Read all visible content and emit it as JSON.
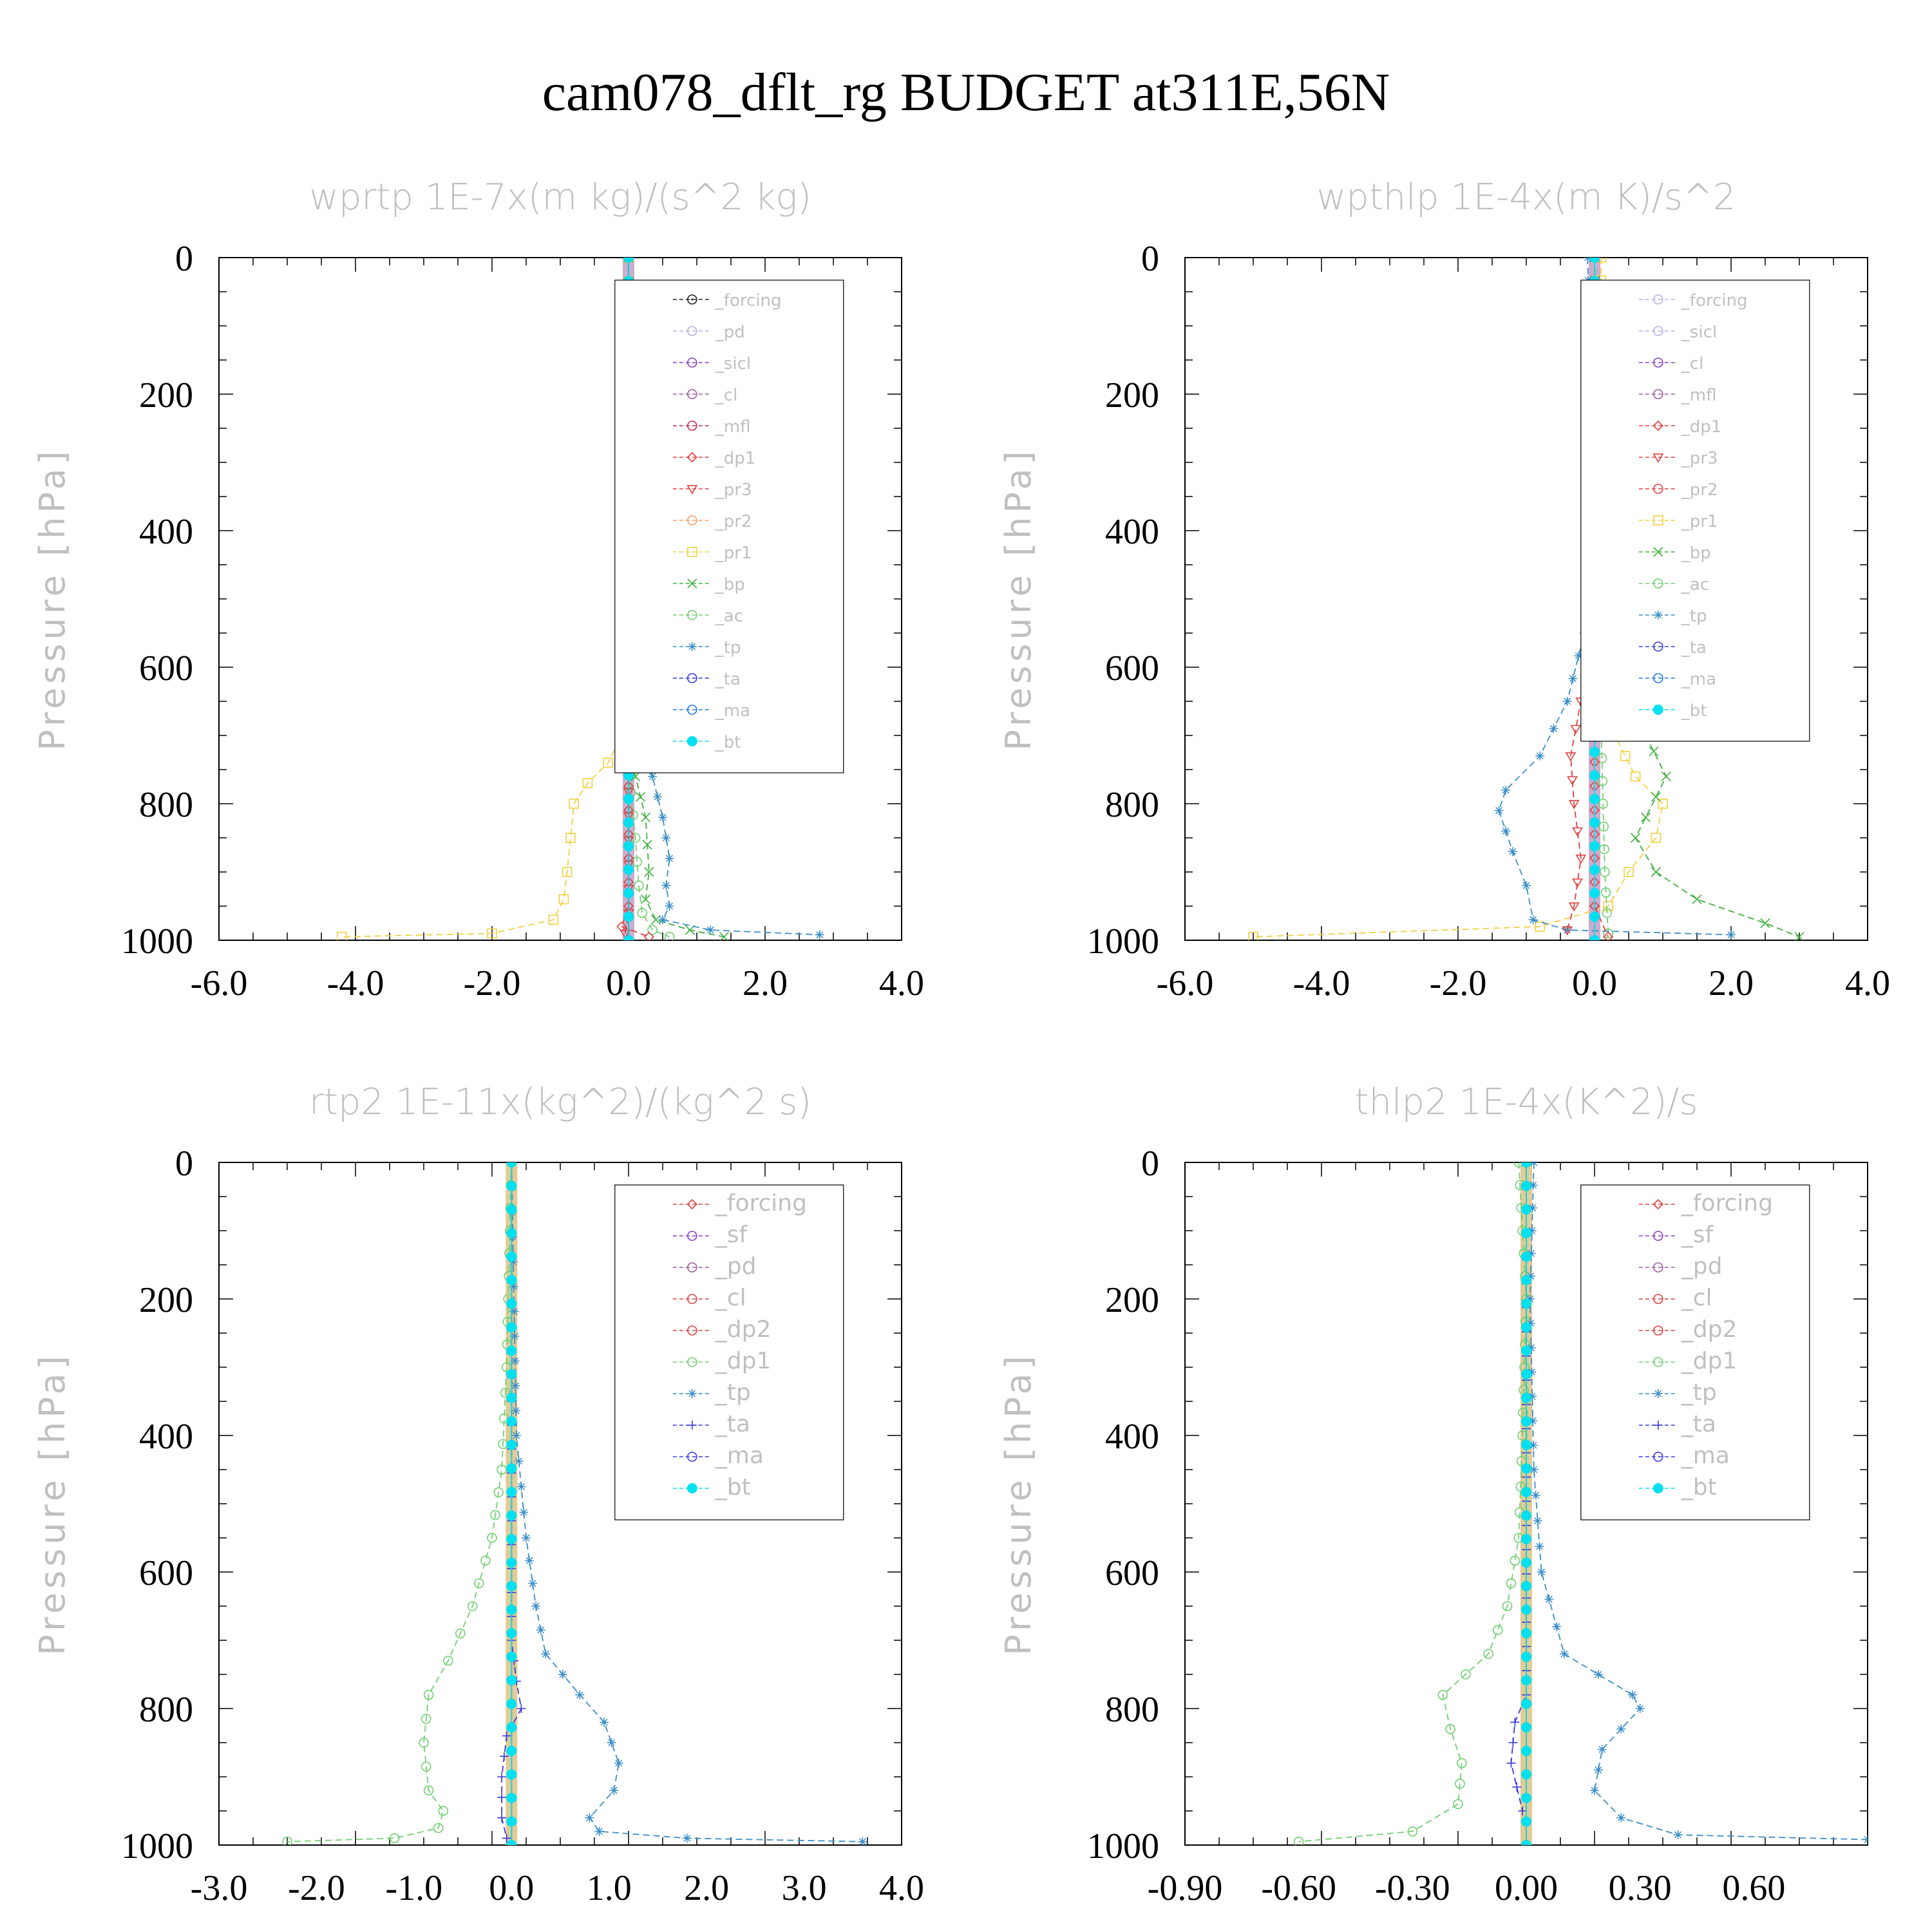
{
  "figure": {
    "title": "cam078_dflt_rg  BUDGET at311E,56N"
  },
  "colors": {
    "forcing_black": "#222222",
    "lavender": "#b9b0e8",
    "purple": "#8a3fc6",
    "violet": "#a05aa0",
    "crimson": "#c03050",
    "red": "#e04040",
    "orange": "#f6a060",
    "yellow": "#f2d040",
    "green": "#40b040",
    "light_green": "#70d070",
    "teal_blue": "#3a8ec8",
    "blue": "#3a3ae0",
    "dodger": "#1e78e0",
    "cyan": "#00e0f0",
    "muted_text": "#c0c0c0"
  },
  "chart_data": [
    {
      "type": "line",
      "title": "wprtp  1E-7x(m kg)/(s^2 kg)",
      "ylabel": "Pressure [hPa]",
      "xlim": [
        -6.0,
        4.0
      ],
      "ylim": [
        1000,
        0
      ],
      "xticks": [
        "-6.0",
        "-4.0",
        "-2.0",
        "0.0",
        "2.0",
        "4.0"
      ],
      "yticks": [
        "0",
        "200",
        "400",
        "600",
        "800",
        "1000"
      ],
      "legend_position": "top-right",
      "legend": [
        "_forcing",
        "_pd",
        "_sicl",
        "_cl",
        "_mfl",
        "_dp1",
        "_pr3",
        "_pr2",
        "_pr1",
        "_bp",
        "_ac",
        "_tp",
        "_ta",
        "_ma",
        "_bt"
      ],
      "series": [
        {
          "name": "_pr1",
          "color": "#f2d040",
          "marker": "square",
          "points": [
            [
              0,
              0
            ],
            [
              0,
              600
            ],
            [
              -0.1,
              700
            ],
            [
              -0.3,
              740
            ],
            [
              -0.6,
              770
            ],
            [
              -0.8,
              800
            ],
            [
              -0.85,
              850
            ],
            [
              -0.9,
              900
            ],
            [
              -0.95,
              940
            ],
            [
              -1.1,
              970
            ],
            [
              -2.0,
              990
            ],
            [
              -4.2,
              995
            ]
          ]
        },
        {
          "name": "_bp",
          "color": "#40b040",
          "marker": "x",
          "points": [
            [
              0,
              0
            ],
            [
              0,
              700
            ],
            [
              0.1,
              760
            ],
            [
              0.25,
              820
            ],
            [
              0.3,
              900
            ],
            [
              0.25,
              940
            ],
            [
              0.4,
              970
            ],
            [
              0.9,
              985
            ],
            [
              1.4,
              995
            ]
          ]
        },
        {
          "name": "_ac",
          "color": "#70d070",
          "marker": "circle",
          "points": [
            [
              0,
              0
            ],
            [
              0,
              750
            ],
            [
              0.1,
              850
            ],
            [
              0.15,
              920
            ],
            [
              0.2,
              960
            ],
            [
              0.35,
              985
            ],
            [
              0.6,
              995
            ]
          ]
        },
        {
          "name": "_tp",
          "color": "#3a8ec8",
          "marker": "asterisk",
          "points": [
            [
              0,
              0
            ],
            [
              0,
              650
            ],
            [
              0.15,
              700
            ],
            [
              0.35,
              760
            ],
            [
              0.5,
              820
            ],
            [
              0.6,
              880
            ],
            [
              0.55,
              920
            ],
            [
              0.6,
              950
            ],
            [
              0.5,
              970
            ],
            [
              1.2,
              985
            ],
            [
              2.8,
              992
            ]
          ]
        },
        {
          "name": "_dp1",
          "color": "#e04040",
          "marker": "diamond",
          "points": [
            [
              0,
              0
            ],
            [
              0,
              950
            ],
            [
              -0.1,
              980
            ],
            [
              0.3,
              995
            ]
          ]
        },
        {
          "name": "_pr3",
          "color": "#e04040",
          "marker": "tri-down",
          "points": [
            [
              0,
              0
            ],
            [
              0,
              960
            ],
            [
              -0.05,
              990
            ]
          ]
        },
        {
          "name": "_forcing",
          "color": "#222222",
          "marker": "circle-dot",
          "points": [
            [
              0,
              0
            ],
            [
              0,
              1000
            ]
          ]
        },
        {
          "name": "_bt",
          "color": "#00e0f0",
          "marker": "filled-circle",
          "points": [
            [
              0,
              0
            ],
            [
              0,
              1000
            ]
          ]
        }
      ]
    },
    {
      "type": "line",
      "title": "wpthlp  1E-4x(m K)/s^2",
      "ylabel": "Pressure [hPa]",
      "xlim": [
        -6.0,
        4.0
      ],
      "ylim": [
        1000,
        0
      ],
      "xticks": [
        "-6.0",
        "-4.0",
        "-2.0",
        "0.0",
        "2.0",
        "4.0"
      ],
      "yticks": [
        "0",
        "200",
        "400",
        "600",
        "800",
        "1000"
      ],
      "legend_position": "top-right",
      "legend": [
        "_forcing",
        "_sicl",
        "_cl",
        "_mfl",
        "_dp1",
        "_pr3",
        "_pr2",
        "_pr1",
        "_bp",
        "_ac",
        "_tp",
        "_ta",
        "_ma",
        "_bt"
      ],
      "series": [
        {
          "name": "_pr1",
          "color": "#f2d040",
          "marker": "square",
          "points": [
            [
              0.1,
              0
            ],
            [
              0.05,
              300
            ],
            [
              0.1,
              500
            ],
            [
              0.15,
              620
            ],
            [
              0.3,
              700
            ],
            [
              0.6,
              760
            ],
            [
              1.0,
              800
            ],
            [
              0.9,
              850
            ],
            [
              0.5,
              900
            ],
            [
              0.2,
              950
            ],
            [
              -0.8,
              980
            ],
            [
              -5.0,
              995
            ]
          ]
        },
        {
          "name": "_bp",
          "color": "#40b040",
          "marker": "x",
          "points": [
            [
              0,
              0
            ],
            [
              0.1,
              300
            ],
            [
              0.25,
              550
            ],
            [
              0.5,
              650
            ],
            [
              1.05,
              760
            ],
            [
              0.6,
              850
            ],
            [
              0.9,
              900
            ],
            [
              1.5,
              940
            ],
            [
              2.5,
              975
            ],
            [
              3.0,
              995
            ]
          ]
        },
        {
          "name": "_ac",
          "color": "#70d070",
          "marker": "circle",
          "points": [
            [
              0,
              0
            ],
            [
              0.05,
              400
            ],
            [
              0.1,
              700
            ],
            [
              0.15,
              900
            ],
            [
              0.2,
              990
            ]
          ]
        },
        {
          "name": "_tp",
          "color": "#3a8ec8",
          "marker": "asterisk",
          "points": [
            [
              -0.1,
              0
            ],
            [
              -0.05,
              300
            ],
            [
              -0.15,
              550
            ],
            [
              -0.4,
              650
            ],
            [
              -0.8,
              730
            ],
            [
              -1.3,
              780
            ],
            [
              -1.4,
              810
            ],
            [
              -1.2,
              870
            ],
            [
              -1.0,
              920
            ],
            [
              -0.9,
              970
            ],
            [
              -0.4,
              985
            ],
            [
              2.0,
              992
            ]
          ]
        },
        {
          "name": "_pr3",
          "color": "#e04040",
          "marker": "tri-down",
          "points": [
            [
              0,
              0
            ],
            [
              0,
              550
            ],
            [
              -0.2,
              650
            ],
            [
              -0.35,
              730
            ],
            [
              -0.3,
              800
            ],
            [
              -0.2,
              880
            ],
            [
              -0.3,
              950
            ],
            [
              -0.4,
              985
            ]
          ]
        },
        {
          "name": "_dp1",
          "color": "#e04040",
          "marker": "diamond",
          "points": [
            [
              0,
              0
            ],
            [
              0,
              950
            ],
            [
              0.2,
              995
            ]
          ]
        },
        {
          "name": "_forcing",
          "color": "#b9b0e8",
          "marker": "circle",
          "points": [
            [
              0,
              0
            ],
            [
              0,
              1000
            ]
          ]
        },
        {
          "name": "_bt",
          "color": "#00e0f0",
          "marker": "filled-circle",
          "points": [
            [
              0,
              0
            ],
            [
              0,
              1000
            ]
          ]
        }
      ]
    },
    {
      "type": "line",
      "title": "rtp2  1E-11x(kg^2)/(kg^2 s)",
      "ylabel": "Pressure [hPa]",
      "xlim": [
        -3.0,
        4.0
      ],
      "ylim": [
        1000,
        0
      ],
      "xticks": [
        "-3.0",
        "-2.0",
        "-1.0",
        "0.0",
        "1.0",
        "2.0",
        "3.0",
        "4.0"
      ],
      "yticks": [
        "0",
        "200",
        "400",
        "600",
        "800",
        "1000"
      ],
      "legend_position": "top-right",
      "legend": [
        "_forcing",
        "_sf",
        "_pd",
        "_cl",
        "_dp2",
        "_dp1",
        "_tp",
        "_ta",
        "_ma",
        "_bt"
      ],
      "series": [
        {
          "name": "_dp1",
          "color": "#70d070",
          "marker": "circle",
          "points": [
            [
              0,
              0
            ],
            [
              -0.05,
              300
            ],
            [
              -0.1,
              450
            ],
            [
              -0.2,
              550
            ],
            [
              -0.4,
              650
            ],
            [
              -0.65,
              730
            ],
            [
              -0.85,
              780
            ],
            [
              -0.9,
              850
            ],
            [
              -0.85,
              920
            ],
            [
              -0.7,
              950
            ],
            [
              -0.75,
              975
            ],
            [
              -1.2,
              990
            ],
            [
              -2.3,
              995
            ]
          ]
        },
        {
          "name": "_tp",
          "color": "#3a8ec8",
          "marker": "asterisk",
          "points": [
            [
              0,
              0
            ],
            [
              0.05,
              400
            ],
            [
              0.15,
              550
            ],
            [
              0.25,
              650
            ],
            [
              0.35,
              720
            ],
            [
              0.7,
              780
            ],
            [
              0.95,
              820
            ],
            [
              1.1,
              880
            ],
            [
              1.05,
              920
            ],
            [
              0.8,
              960
            ],
            [
              0.9,
              980
            ],
            [
              1.8,
              990
            ],
            [
              3.6,
              995
            ]
          ]
        },
        {
          "name": "_ta",
          "color": "#3a3ae0",
          "marker": "plus",
          "points": [
            [
              0,
              0
            ],
            [
              0,
              700
            ],
            [
              0.05,
              760
            ],
            [
              0.1,
              800
            ],
            [
              -0.05,
              840
            ],
            [
              -0.1,
              900
            ],
            [
              -0.1,
              960
            ],
            [
              -0.05,
              990
            ]
          ]
        },
        {
          "name": "_forcing",
          "color": "#e04040",
          "marker": "diamond",
          "points": [
            [
              0,
              0
            ],
            [
              0,
              1000
            ]
          ]
        },
        {
          "name": "_bt",
          "color": "#00e0f0",
          "marker": "filled-circle",
          "points": [
            [
              0,
              0
            ],
            [
              0,
              1000
            ]
          ]
        }
      ]
    },
    {
      "type": "line",
      "title": "thlp2  1E-4x(K^2)/s",
      "ylabel": "Pressure [hPa]",
      "xlim": [
        -0.9,
        0.9
      ],
      "ylim": [
        1000,
        0
      ],
      "xticks": [
        "-0.90",
        "-0.60",
        "-0.30",
        "0.00",
        "0.30",
        "0.60"
      ],
      "yticks": [
        "0",
        "200",
        "400",
        "600",
        "800",
        "1000"
      ],
      "legend_position": "top-right",
      "legend": [
        "_forcing",
        "_sf",
        "_pd",
        "_cl",
        "_dp2",
        "_dp1",
        "_tp",
        "_ta",
        "_ma",
        "_bt"
      ],
      "series": [
        {
          "name": "_dp1",
          "color": "#70d070",
          "marker": "circle",
          "points": [
            [
              -0.02,
              0
            ],
            [
              0,
              200
            ],
            [
              -0.01,
              400
            ],
            [
              -0.02,
              550
            ],
            [
              -0.05,
              650
            ],
            [
              -0.1,
              720
            ],
            [
              -0.22,
              780
            ],
            [
              -0.2,
              830
            ],
            [
              -0.17,
              880
            ],
            [
              -0.18,
              940
            ],
            [
              -0.3,
              980
            ],
            [
              -0.6,
              995
            ]
          ]
        },
        {
          "name": "_tp",
          "color": "#3a8ec8",
          "marker": "asterisk",
          "points": [
            [
              0.02,
              0
            ],
            [
              0.01,
              200
            ],
            [
              0.02,
              450
            ],
            [
              0.04,
              600
            ],
            [
              0.1,
              720
            ],
            [
              0.28,
              780
            ],
            [
              0.3,
              800
            ],
            [
              0.2,
              860
            ],
            [
              0.18,
              920
            ],
            [
              0.25,
              960
            ],
            [
              0.4,
              985
            ],
            [
              0.9,
              992
            ]
          ]
        },
        {
          "name": "_ta",
          "color": "#3a3ae0",
          "marker": "plus",
          "points": [
            [
              0,
              0
            ],
            [
              0,
              780
            ],
            [
              -0.03,
              820
            ],
            [
              -0.04,
              880
            ],
            [
              -0.01,
              950
            ]
          ]
        },
        {
          "name": "_forcing",
          "color": "#e04040",
          "marker": "diamond",
          "points": [
            [
              0,
              0
            ],
            [
              0,
              1000
            ]
          ]
        },
        {
          "name": "_bt",
          "color": "#00e0f0",
          "marker": "filled-circle",
          "points": [
            [
              0,
              0
            ],
            [
              0,
              1000
            ]
          ]
        }
      ]
    }
  ]
}
